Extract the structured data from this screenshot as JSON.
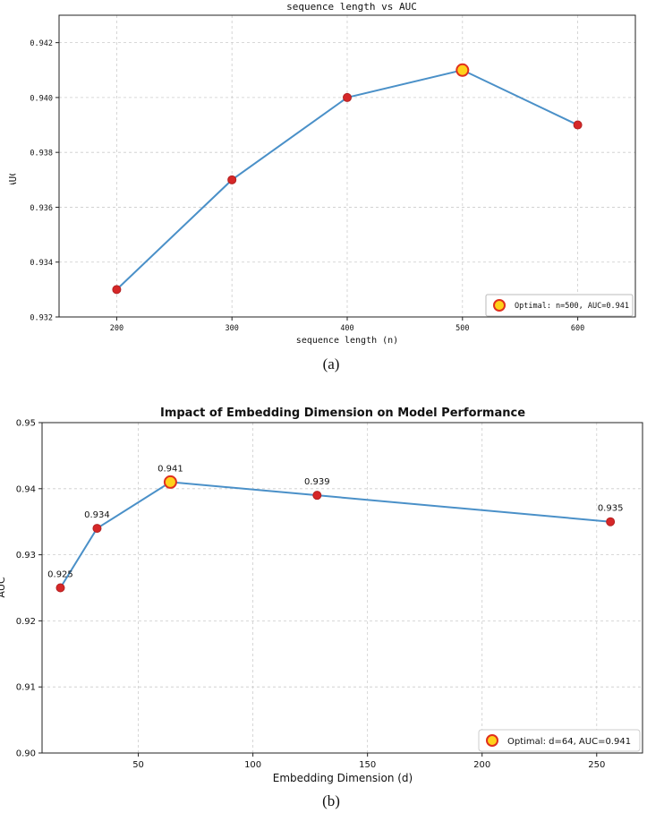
{
  "colors": {
    "line": "#4a90c8",
    "marker": "#d62728",
    "marker_edge": "#b22222",
    "optimal_fill": "#ffd11a",
    "optimal_edge": "#e0301e",
    "grid": "#cccccc"
  },
  "chart_data": [
    {
      "type": "line",
      "title": "sequence length vs AUC",
      "xlabel": "sequence length (n)",
      "ylabel": "AUC",
      "caption": "(a)",
      "x": [
        200,
        300,
        400,
        500,
        600
      ],
      "y": [
        0.933,
        0.937,
        0.94,
        0.941,
        0.939
      ],
      "xlim": [
        150,
        650
      ],
      "ylim": [
        0.932,
        0.943
      ],
      "xticks": [
        "200",
        "300",
        "400",
        "500",
        "600"
      ],
      "yticks": [
        "0.932",
        "0.934",
        "0.936",
        "0.938",
        "0.940",
        "0.942"
      ],
      "optimal": {
        "x": 500,
        "y": 0.941
      },
      "legend": {
        "label": "Optimal: n=500, AUC=0.941",
        "placement": "lower-right"
      },
      "grid": true
    },
    {
      "type": "line",
      "title": "Impact of Embedding Dimension on Model Performance",
      "xlabel": "Embedding Dimension (d)",
      "ylabel": "AUC",
      "caption": "(b)",
      "x": [
        16,
        32,
        64,
        128,
        256
      ],
      "y": [
        0.925,
        0.934,
        0.941,
        0.939,
        0.935
      ],
      "data_labels": [
        "0.925",
        "0.934",
        "0.941",
        "0.939",
        "0.935"
      ],
      "xlim": [
        8,
        270
      ],
      "ylim": [
        0.9,
        0.95
      ],
      "xticks": [
        "50",
        "100",
        "150",
        "200",
        "250"
      ],
      "yticks": [
        "0.90",
        "0.91",
        "0.92",
        "0.93",
        "0.94",
        "0.95"
      ],
      "optimal": {
        "x": 64,
        "y": 0.941
      },
      "legend": {
        "label": "Optimal: d=64, AUC=0.941",
        "placement": "lower-right"
      },
      "grid": true
    }
  ]
}
